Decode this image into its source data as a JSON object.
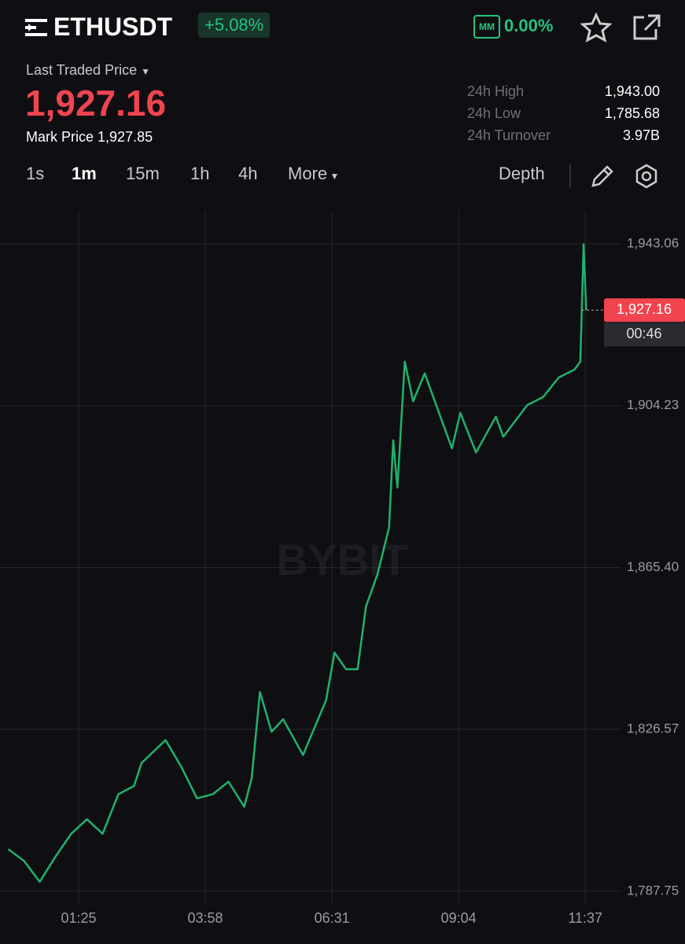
{
  "header": {
    "symbol": "ETHUSDT",
    "change": "+5.08%",
    "mm_badge": "MM",
    "mm_rate": "0.00%",
    "last_price_label": "Last Traded Price",
    "last_price": "1,927.16",
    "mark_price_label": "Mark Price",
    "mark_price": "1,927.85",
    "stats": [
      {
        "label": "24h High",
        "value": "1,943.00"
      },
      {
        "label": "24h Low",
        "value": "1,785.68"
      },
      {
        "label": "24h Turnover",
        "value": "3.97B"
      }
    ]
  },
  "toolbar": {
    "intervals": [
      "1s",
      "1m",
      "15m",
      "1h",
      "4h"
    ],
    "active": "1m",
    "more": "More",
    "depth": "Depth"
  },
  "chart_data": {
    "type": "line",
    "watermark": "BYBIT",
    "color": "#20b26c",
    "x": [
      0,
      19,
      38,
      57,
      76,
      95,
      114,
      133,
      152,
      161,
      190,
      209,
      228,
      247,
      266,
      285,
      294,
      304,
      318,
      332,
      356,
      370,
      384,
      394,
      408,
      422,
      432,
      446,
      460,
      465,
      470,
      479,
      489,
      503,
      522,
      536,
      546,
      565,
      589,
      598,
      627,
      646,
      665,
      684,
      691,
      695,
      698
    ],
    "values": [
      1797.8,
      1795,
      1790,
      1796,
      1801.5,
      1805,
      1801.5,
      1811,
      1813,
      1818.5,
      1824,
      1817.6,
      1810,
      1811,
      1814,
      1808,
      1814.8,
      1835.5,
      1826,
      1829,
      1820.4,
      1827,
      1833.6,
      1845,
      1841,
      1841,
      1856,
      1863.8,
      1875,
      1895.9,
      1884.6,
      1914.8,
      1905.3,
      1912,
      1901.6,
      1894,
      1902.5,
      1893,
      1901.6,
      1896.8,
      1904.4,
      1906.3,
      1911,
      1912.9,
      1914.8,
      1943,
      1927.16
    ],
    "xlim": [
      -10,
      731
    ],
    "ylim": [
      1784.5,
      1951
    ],
    "xticks": [
      {
        "value": 85,
        "label": "01:25"
      },
      {
        "value": 238,
        "label": "03:58"
      },
      {
        "value": 391,
        "label": "06:31"
      },
      {
        "value": 544,
        "label": "09:04"
      },
      {
        "value": 697,
        "label": "11:37"
      }
    ],
    "yticks": [
      {
        "value": 1787.75,
        "label": "1,787.75"
      },
      {
        "value": 1826.57,
        "label": "1,826.57"
      },
      {
        "value": 1865.4,
        "label": "1,865.40"
      },
      {
        "value": 1904.23,
        "label": "1,904.23"
      },
      {
        "value": 1943.06,
        "label": "1,943.06"
      }
    ],
    "grid": true,
    "last_price": {
      "value": 1927.16,
      "label": "1,927.16"
    },
    "countdown": "00:46"
  }
}
